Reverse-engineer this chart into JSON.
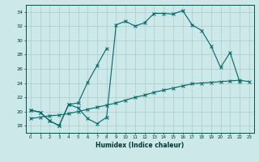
{
  "xlabel": "Humidex (Indice chaleur)",
  "bg_color": "#cce8e8",
  "grid_color": "#aacccc",
  "line_color": "#006666",
  "xlim": [
    -0.5,
    23.5
  ],
  "ylim": [
    17,
    35
  ],
  "xticks": [
    0,
    1,
    2,
    3,
    4,
    5,
    6,
    7,
    8,
    9,
    10,
    11,
    12,
    13,
    14,
    15,
    16,
    17,
    18,
    19,
    20,
    21,
    22,
    23
  ],
  "yticks": [
    18,
    20,
    22,
    24,
    26,
    28,
    30,
    32,
    34
  ],
  "line1_y": [
    20.2,
    19.9,
    18.7,
    18.0,
    21.0,
    20.5,
    19.0,
    18.3,
    19.2,
    32.2,
    32.7,
    32.0,
    32.5,
    33.8,
    33.8,
    33.7,
    34.2,
    32.2,
    31.4,
    29.2,
    26.2,
    28.3,
    24.2,
    null
  ],
  "line2_y": [
    20.2,
    19.9,
    18.7,
    18.0,
    21.0,
    21.2,
    24.1,
    26.5,
    28.9,
    null,
    null,
    null,
    null,
    null,
    null,
    null,
    null,
    null,
    null,
    null,
    null,
    null,
    null,
    null
  ],
  "line3_y": [
    19.0,
    19.2,
    19.4,
    19.5,
    19.7,
    20.0,
    20.3,
    20.6,
    20.9,
    21.2,
    21.6,
    22.0,
    22.3,
    22.7,
    23.0,
    23.3,
    23.6,
    23.9,
    24.0,
    24.1,
    24.2,
    24.3,
    24.4,
    24.2
  ]
}
